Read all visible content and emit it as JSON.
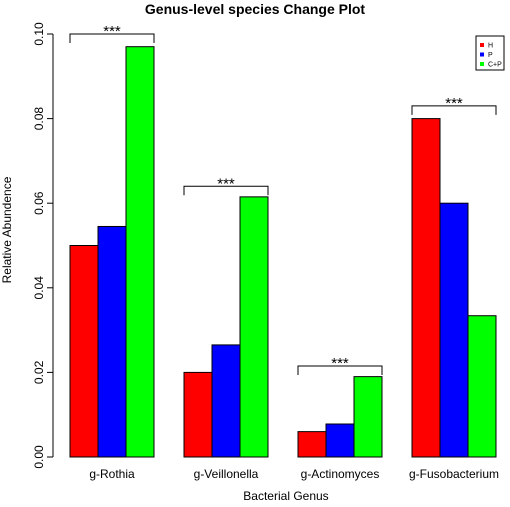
{
  "chart_data": {
    "type": "bar",
    "title": "Genus-level species Change Plot",
    "xlabel": "Bacterial Genus",
    "ylabel": "Relative Abundence",
    "ylim": [
      0,
      0.1
    ],
    "yticks": [
      "0.00",
      "0.02",
      "0.04",
      "0.06",
      "0.08",
      "0.10"
    ],
    "categories": [
      "g-Rothia",
      "g-Veillonella",
      "g-Actinomyces",
      "g-Fusobacterium"
    ],
    "series": [
      {
        "name": "H",
        "color": "#ff0000",
        "values": [
          0.05,
          0.02,
          0.006,
          0.08
        ]
      },
      {
        "name": "P",
        "color": "#0000ff",
        "values": [
          0.0545,
          0.0265,
          0.0078,
          0.06
        ]
      },
      {
        "name": "C+P",
        "color": "#00ff00",
        "values": [
          0.097,
          0.0615,
          0.019,
          0.0334
        ]
      }
    ],
    "significance": [
      {
        "category": "g-Rothia",
        "label": "***",
        "bracket_y": 0.1
      },
      {
        "category": "g-Veillonella",
        "label": "***",
        "bracket_y": 0.064
      },
      {
        "category": "g-Actinomyces",
        "label": "***",
        "bracket_y": 0.0215
      },
      {
        "category": "g-Fusobacterium",
        "label": "***",
        "bracket_y": 0.083
      }
    ],
    "legend_position": "top-right",
    "grid": false
  }
}
